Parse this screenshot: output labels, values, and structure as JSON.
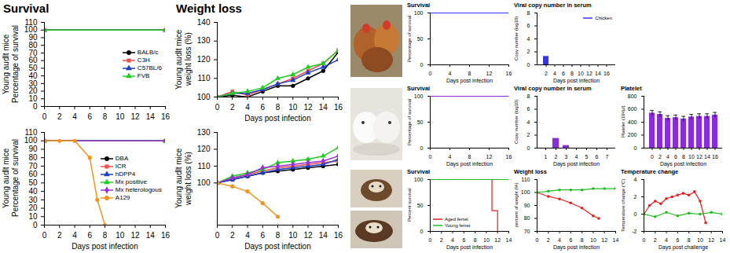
{
  "chart_data": [
    {
      "type": "line",
      "title": "Survival",
      "ylabel": [
        "Young audlt mice",
        "Percentage of survival"
      ],
      "x": [
        0,
        16
      ],
      "xlim": [
        0,
        16
      ],
      "xticks": [
        0,
        2,
        4,
        6,
        8,
        10,
        12,
        14,
        16
      ],
      "ylim": [
        0,
        110
      ],
      "yticks": [
        0,
        10,
        20,
        30,
        40,
        50,
        60,
        70,
        80,
        90,
        100,
        110
      ],
      "legend": "right",
      "series": [
        {
          "name": "BALB/c",
          "color": "#000000",
          "marker": "circle",
          "values": [
            100,
            100
          ]
        },
        {
          "name": "C3H",
          "color": "#e8524f",
          "marker": "square",
          "values": [
            100,
            100
          ]
        },
        {
          "name": "C57BL/6",
          "color": "#1f3fbf",
          "marker": "triangle",
          "values": [
            100,
            100
          ]
        },
        {
          "name": "FVB",
          "color": "#22cc22",
          "marker": "triangle",
          "values": [
            100,
            100
          ]
        }
      ]
    },
    {
      "type": "line",
      "title": "Weight loss",
      "ylabel": [
        "Young audlt mice",
        "weight loss (%)"
      ],
      "xlabel": "Days post infection",
      "x": [
        0,
        2,
        4,
        6,
        8,
        10,
        12,
        14,
        16
      ],
      "xlim": [
        0,
        16
      ],
      "xticks": [
        0,
        2,
        4,
        6,
        8,
        10,
        12,
        14,
        16
      ],
      "ylim": [
        100,
        140
      ],
      "yticks": [
        100,
        110,
        120,
        130,
        140
      ],
      "series": [
        {
          "color": "#000000",
          "marker": "circle",
          "values": [
            100,
            101,
            100,
            103,
            106,
            106,
            110,
            114,
            124
          ]
        },
        {
          "color": "#e8524f",
          "marker": "square",
          "values": [
            100,
            103,
            101,
            104,
            107,
            110,
            114,
            118,
            125
          ]
        },
        {
          "color": "#1f3fbf",
          "marker": "triangle",
          "values": [
            100,
            102,
            102,
            104,
            107,
            109,
            113,
            116,
            120
          ]
        },
        {
          "color": "#22cc22",
          "marker": "triangle",
          "values": [
            100,
            102,
            103,
            105,
            110,
            112,
            116,
            118,
            125
          ]
        }
      ]
    },
    {
      "type": "line",
      "ylabel": [
        "Young audlt mice",
        "Percentage of survival"
      ],
      "xlabel": "Days post infection",
      "x": [
        0,
        16
      ],
      "xlim": [
        0,
        16
      ],
      "xticks": [
        0,
        2,
        4,
        6,
        8,
        10,
        12,
        14,
        16
      ],
      "ylim": [
        0,
        110
      ],
      "yticks": [
        0,
        10,
        20,
        30,
        40,
        50,
        60,
        70,
        80,
        90,
        100,
        110
      ],
      "legend": "right",
      "series": [
        {
          "name": "DBA",
          "color": "#000000",
          "marker": "circle",
          "values": [
            100,
            100
          ]
        },
        {
          "name": "ICR",
          "color": "#e8524f",
          "marker": "square",
          "values": [
            100,
            100
          ]
        },
        {
          "name": "hDPP4",
          "color": "#1f3fbf",
          "marker": "triangle",
          "values": [
            100,
            100
          ]
        },
        {
          "name": "Mx positive",
          "color": "#22cc22",
          "marker": "triangle",
          "values": [
            100,
            100
          ]
        },
        {
          "name": "Mx heterologous",
          "color": "#9b30d9",
          "marker": "diamond",
          "values": [
            100,
            100
          ]
        },
        {
          "name": "A129",
          "color": "#f0961e",
          "marker": "circle",
          "x": [
            0,
            2,
            4,
            6,
            7,
            8
          ],
          "values": [
            100,
            100,
            100,
            80,
            30,
            0
          ]
        }
      ]
    },
    {
      "type": "line",
      "ylabel": [
        "Young audlt mice",
        "weight loss (%)"
      ],
      "xlabel": "Days post infection",
      "x": [
        0,
        2,
        4,
        6,
        8,
        10,
        12,
        14,
        16
      ],
      "xlim": [
        0,
        16
      ],
      "xticks": [
        0,
        2,
        4,
        6,
        8,
        10,
        12,
        14,
        16
      ],
      "ylim": [
        75,
        130
      ],
      "yticks": [
        100,
        110,
        120,
        130
      ],
      "series": [
        {
          "color": "#000000",
          "marker": "circle",
          "values": [
            100,
            102,
            104,
            106,
            107,
            108,
            109,
            110,
            111
          ]
        },
        {
          "color": "#e8524f",
          "marker": "square",
          "values": [
            100,
            103,
            105,
            107,
            109,
            110,
            111,
            112,
            113
          ]
        },
        {
          "color": "#1f3fbf",
          "marker": "triangle",
          "values": [
            100,
            102,
            104,
            106,
            108,
            109,
            110,
            111,
            114
          ]
        },
        {
          "color": "#22cc22",
          "marker": "triangle",
          "values": [
            100,
            104,
            106,
            108,
            112,
            113,
            114,
            116,
            121
          ]
        },
        {
          "color": "#9b30d9",
          "marker": "diamond",
          "values": [
            100,
            103,
            105,
            109,
            110,
            111,
            112,
            113,
            116
          ]
        },
        {
          "color": "#f0961e",
          "marker": "circle",
          "x": [
            0,
            2,
            4,
            6,
            8
          ],
          "values": [
            100,
            98,
            95,
            88,
            80
          ]
        }
      ]
    },
    {
      "type": "line",
      "title": "Survival",
      "ylabel": "Percentage of survival",
      "xlabel": "Days post infection",
      "x": [
        0,
        16
      ],
      "xlim": [
        0,
        16
      ],
      "xticks": [
        0,
        4,
        8,
        12,
        16
      ],
      "ylim": [
        0,
        100
      ],
      "yticks": [
        0,
        50,
        100
      ],
      "series": [
        {
          "color": "#3333ff",
          "values": [
            100,
            100
          ]
        }
      ]
    },
    {
      "type": "bar",
      "title": "Viral copy number in serum",
      "ylabel": "Copy number (log10)",
      "xlabel": "Days post infection",
      "categories": [
        2,
        4,
        6,
        8,
        10,
        12,
        14,
        16
      ],
      "ylim": [
        0,
        8
      ],
      "yticks": [
        0,
        2,
        4,
        6,
        8
      ],
      "legend": "top-right",
      "series": [
        {
          "name": "Chicken",
          "color": "#3333ff",
          "values": [
            1.3,
            0,
            0,
            0,
            0,
            0,
            0,
            0
          ]
        }
      ]
    },
    {
      "type": "line",
      "title": "Survival",
      "ylabel": "Percentage of survival",
      "xlabel": "Days post infection",
      "x": [
        0,
        16
      ],
      "xlim": [
        0,
        16
      ],
      "xticks": [
        0,
        4,
        8,
        12,
        16
      ],
      "ylim": [
        0,
        100
      ],
      "yticks": [
        0,
        50,
        100
      ],
      "series": [
        {
          "color": "#8a2be2",
          "values": [
            100,
            100
          ]
        }
      ]
    },
    {
      "type": "bar",
      "title": "Viral copy number in serum",
      "ylabel": "Copy number (log10)",
      "xlabel": "Days post infection",
      "categories": [
        1,
        2,
        3,
        4,
        5,
        6,
        7
      ],
      "ylim": [
        0,
        8
      ],
      "yticks": [
        0,
        2,
        4,
        6,
        8
      ],
      "series": [
        {
          "color": "#8a2be2",
          "values": [
            0,
            1.5,
            0.4,
            0,
            0,
            0,
            0
          ]
        }
      ]
    },
    {
      "type": "bar",
      "title": "Platelet",
      "ylabel": "Platelet (10³/μl)",
      "xlabel": "Days post infection",
      "categories": [
        0,
        2,
        4,
        6,
        8,
        10,
        12,
        14,
        16
      ],
      "ylim": [
        0,
        800
      ],
      "yticks": [
        0,
        200,
        400,
        600,
        800
      ],
      "series": [
        {
          "color": "#8a2be2",
          "values": [
            540,
            520,
            460,
            470,
            450,
            480,
            490,
            490,
            510
          ],
          "errors": [
            40,
            40,
            40,
            40,
            40,
            40,
            40,
            40,
            40
          ]
        }
      ]
    },
    {
      "type": "line",
      "title": "Survival",
      "ylabel": "Percent survival",
      "xlabel": "Days post infection",
      "xlim": [
        0,
        14
      ],
      "xticks": [
        0,
        2,
        4,
        6,
        8,
        10,
        12,
        14
      ],
      "ylim": [
        0,
        100
      ],
      "yticks": [
        0,
        50,
        100
      ],
      "legend": "bottom-left",
      "series": [
        {
          "name": "Aged ferret",
          "color": "#e02020",
          "x": [
            0,
            11,
            11,
            12,
            12
          ],
          "values": [
            100,
            100,
            40,
            40,
            0
          ]
        },
        {
          "name": "Young ferret",
          "color": "#22bb22",
          "x": [
            0,
            14
          ],
          "values": [
            100,
            100
          ]
        }
      ]
    },
    {
      "type": "line",
      "title": "Weight loss",
      "ylabel": "percent of weight (%)",
      "xlabel": "Days post infection",
      "xlim": [
        0,
        14
      ],
      "xticks": [
        0,
        2,
        4,
        6,
        8,
        10,
        12,
        14
      ],
      "ylim": [
        70,
        110
      ],
      "yticks": [
        70,
        80,
        90,
        100,
        110
      ],
      "series": [
        {
          "color": "#e02020",
          "marker": "circle",
          "x": [
            0,
            2,
            4,
            6,
            8,
            10,
            11
          ],
          "values": [
            100,
            97,
            95,
            92,
            88,
            82,
            80
          ]
        },
        {
          "color": "#22bb22",
          "marker": "circle",
          "x": [
            0,
            2,
            4,
            6,
            8,
            10,
            12,
            14
          ],
          "values": [
            100,
            101,
            102,
            102,
            102,
            103,
            103,
            103
          ]
        }
      ]
    },
    {
      "type": "line",
      "title": "Temperature change",
      "ylabel": "Temperature change (°C)",
      "xlabel": "Days post challenge",
      "xlim": [
        0,
        14
      ],
      "xticks": [
        0,
        2,
        4,
        6,
        8,
        10,
        12,
        14
      ],
      "ylim": [
        -2,
        4
      ],
      "yticks": [
        -2,
        0,
        2,
        4
      ],
      "series": [
        {
          "color": "#e02020",
          "marker": "circle",
          "x": [
            0,
            1,
            2,
            3,
            4,
            5,
            6,
            7,
            8,
            9,
            10,
            11
          ],
          "values": [
            0,
            1,
            1.5,
            1.2,
            1.8,
            2,
            2.2,
            2.4,
            2.2,
            2.6,
            1.5,
            -1
          ]
        },
        {
          "color": "#22bb22",
          "marker": "circle",
          "x": [
            0,
            2,
            4,
            6,
            8,
            10,
            12,
            14
          ],
          "values": [
            0,
            -0.3,
            0.2,
            -0.2,
            0.1,
            0,
            0.2,
            0
          ]
        }
      ]
    }
  ]
}
